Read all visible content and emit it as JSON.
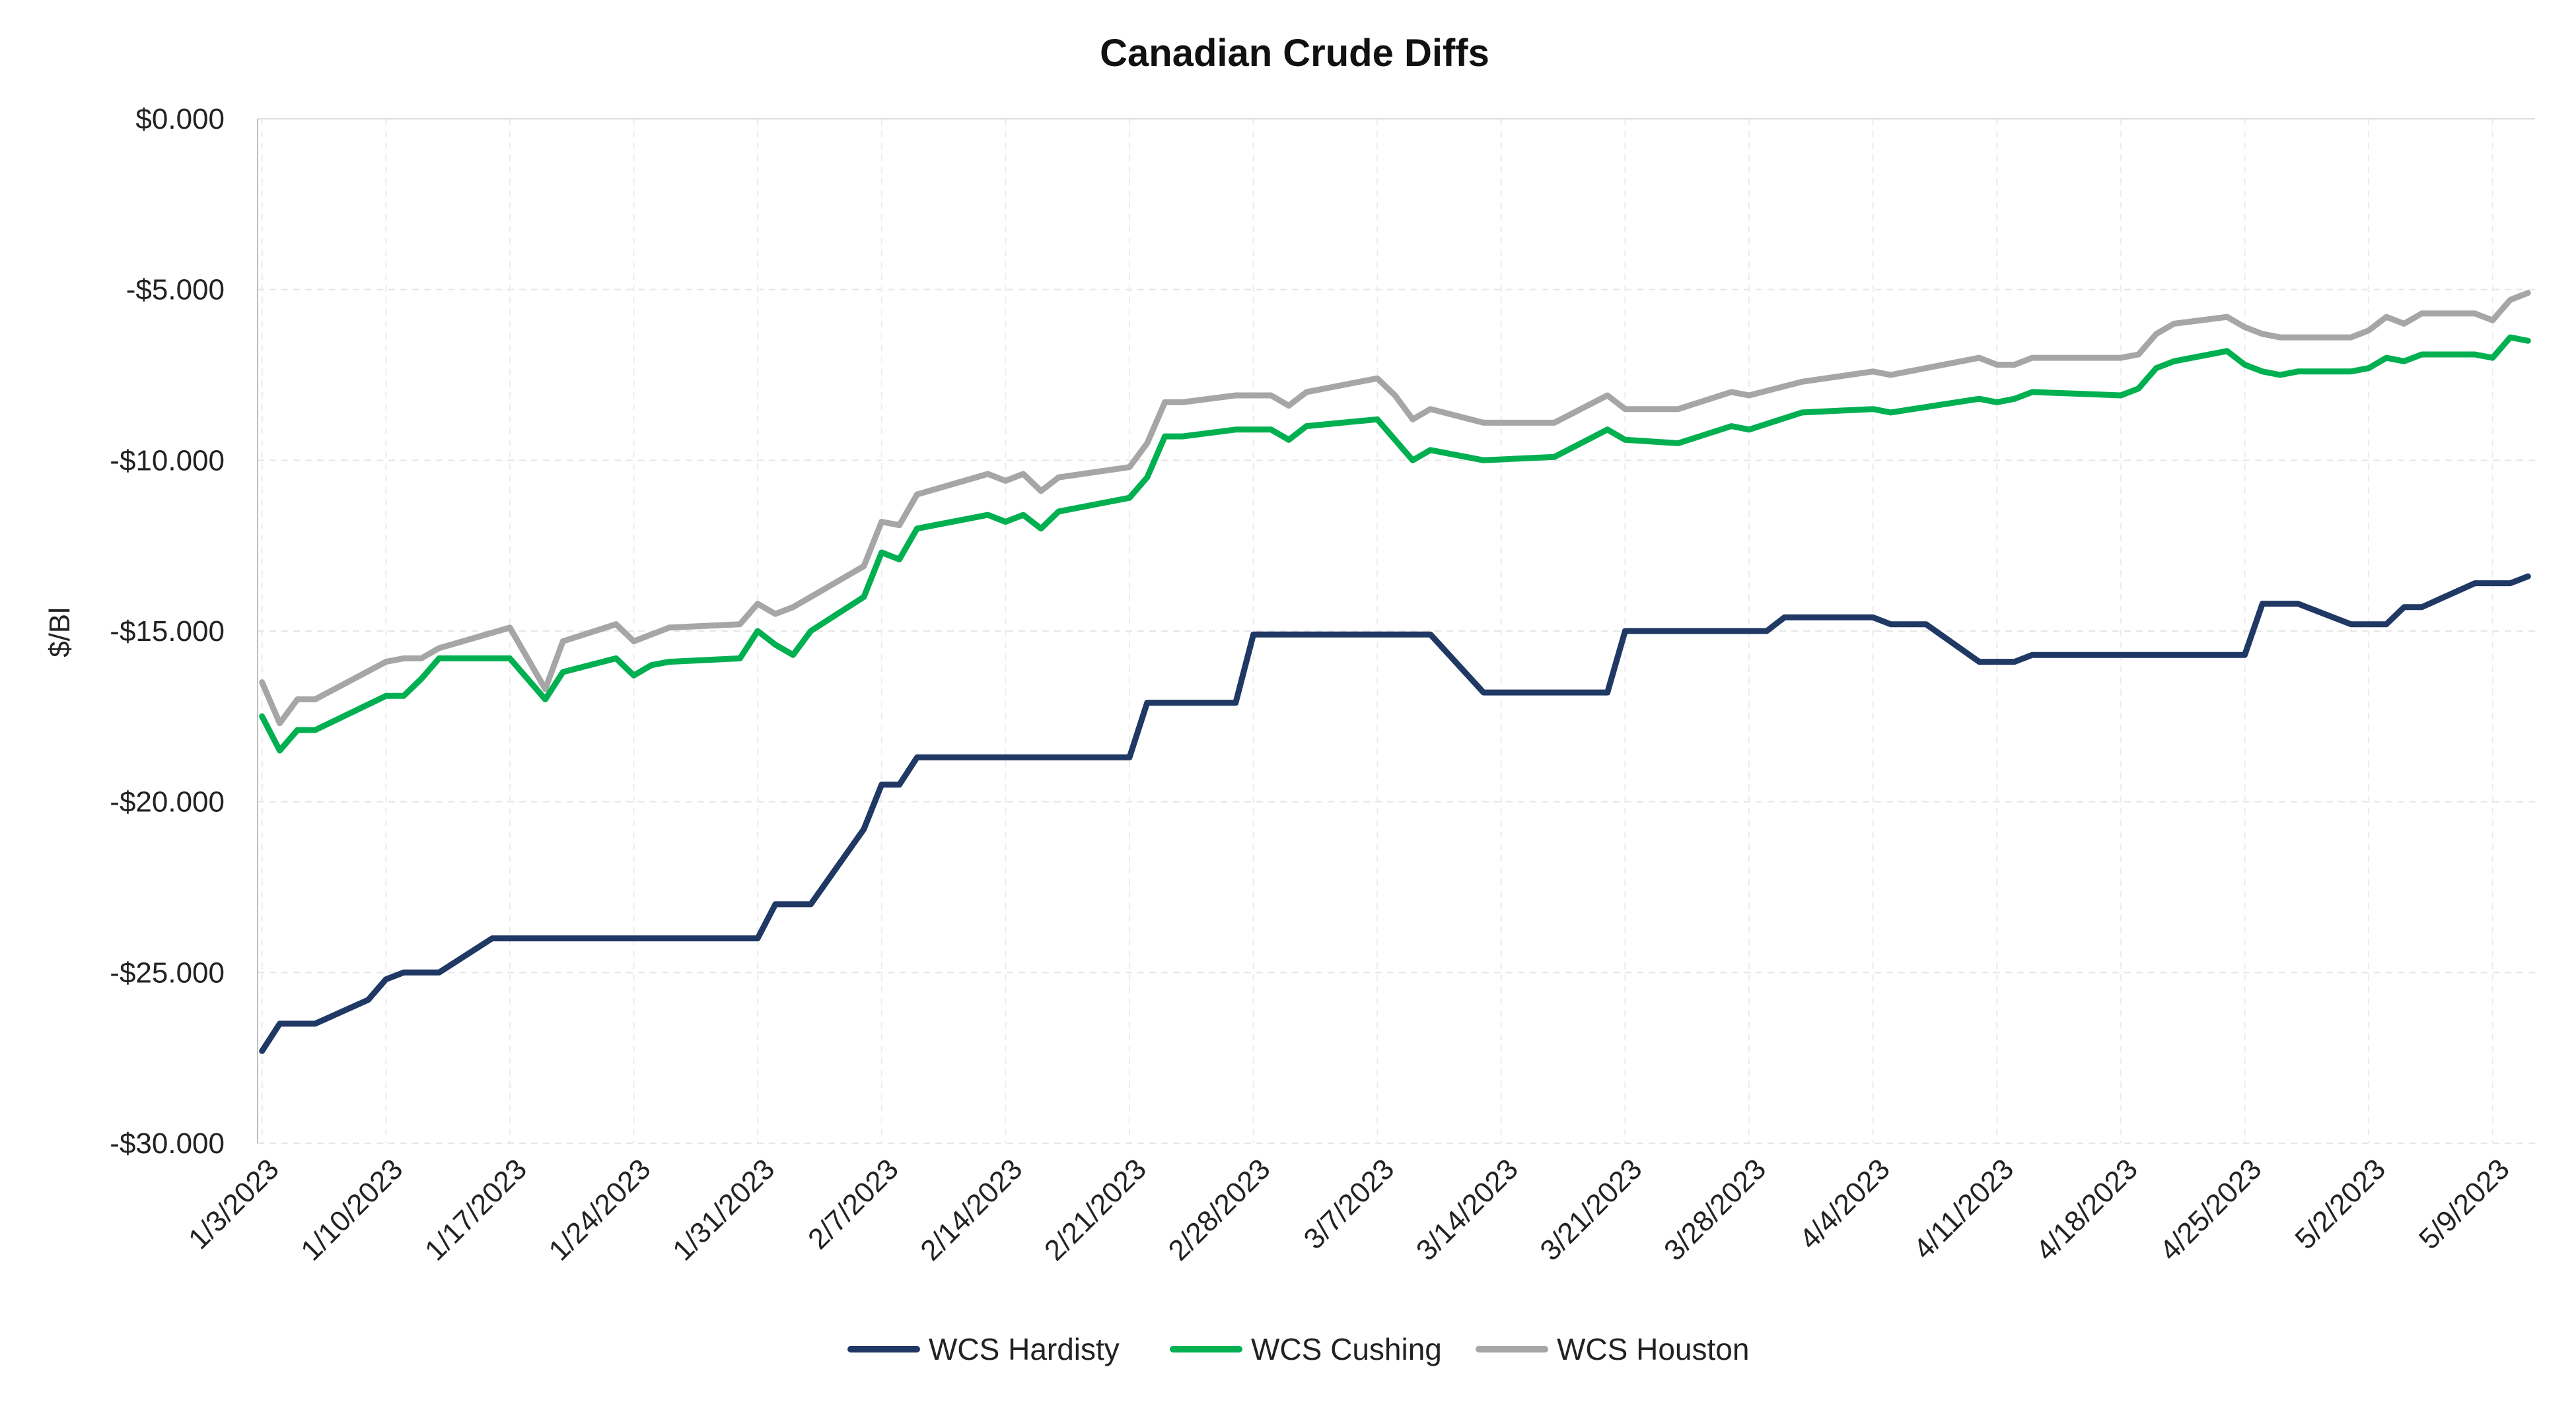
{
  "chart_data": {
    "type": "line",
    "title": "Canadian Crude Diffs",
    "xlabel": "",
    "ylabel": "$/Bl",
    "ylim": [
      -30,
      0
    ],
    "yticks": [
      "$0.000",
      "-$5.000",
      "-$10.000",
      "-$15.000",
      "-$20.000",
      "-$25.000",
      "-$30.000"
    ],
    "ytick_values": [
      0,
      -5,
      -10,
      -15,
      -20,
      -25,
      -30
    ],
    "xticks": [
      "1/3/2023",
      "1/10/2023",
      "1/17/2023",
      "1/24/2023",
      "1/31/2023",
      "2/7/2023",
      "2/14/2023",
      "2/21/2023",
      "2/28/2023",
      "3/7/2023",
      "3/14/2023",
      "3/21/2023",
      "3/28/2023",
      "4/4/2023",
      "4/11/2023",
      "4/18/2023",
      "4/25/2023",
      "5/2/2023",
      "5/9/2023"
    ],
    "x_axis_end": "5/11/2023",
    "grid": true,
    "legend_position": "bottom",
    "series": [
      {
        "name": "WCS Hardisty",
        "color": "#1f3864",
        "points": [
          [
            "1/3/2023",
            -27.3
          ],
          [
            "1/4/2023",
            -26.5
          ],
          [
            "1/5/2023",
            -26.5
          ],
          [
            "1/6/2023",
            -26.5
          ],
          [
            "1/9/2023",
            -25.8
          ],
          [
            "1/10/2023",
            -25.2
          ],
          [
            "1/11/2023",
            -25.0
          ],
          [
            "1/12/2023",
            -25.0
          ],
          [
            "1/13/2023",
            -25.0
          ],
          [
            "1/16/2023",
            -24.0
          ],
          [
            "1/17/2023",
            -24.0
          ],
          [
            "1/24/2023",
            -24.0
          ],
          [
            "1/31/2023",
            -24.0
          ],
          [
            "2/1/2023",
            -23.0
          ],
          [
            "2/2/2023",
            -23.0
          ],
          [
            "2/3/2023",
            -23.0
          ],
          [
            "2/6/2023",
            -20.8
          ],
          [
            "2/7/2023",
            -19.5
          ],
          [
            "2/8/2023",
            -19.5
          ],
          [
            "2/9/2023",
            -18.7
          ],
          [
            "2/10/2023",
            -18.7
          ],
          [
            "2/17/2023",
            -18.7
          ],
          [
            "2/21/2023",
            -18.7
          ],
          [
            "2/22/2023",
            -17.1
          ],
          [
            "2/27/2023",
            -17.1
          ],
          [
            "2/28/2023",
            -15.1
          ],
          [
            "3/10/2023",
            -15.1
          ],
          [
            "3/13/2023",
            -16.8
          ],
          [
            "3/20/2023",
            -16.8
          ],
          [
            "3/21/2023",
            -15.0
          ],
          [
            "3/28/2023",
            -15.0
          ],
          [
            "3/29/2023",
            -15.0
          ],
          [
            "3/30/2023",
            -14.6
          ],
          [
            "4/4/2023",
            -14.6
          ],
          [
            "4/5/2023",
            -14.8
          ],
          [
            "4/7/2023",
            -14.8
          ],
          [
            "4/10/2023",
            -15.9
          ],
          [
            "4/12/2023",
            -15.9
          ],
          [
            "4/13/2023",
            -15.7
          ],
          [
            "4/25/2023",
            -15.7
          ],
          [
            "4/26/2023",
            -14.2
          ],
          [
            "4/28/2023",
            -14.2
          ],
          [
            "5/1/2023",
            -14.8
          ],
          [
            "5/3/2023",
            -14.8
          ],
          [
            "5/4/2023",
            -14.3
          ],
          [
            "5/5/2023",
            -14.3
          ],
          [
            "5/8/2023",
            -13.6
          ],
          [
            "5/10/2023",
            -13.6
          ],
          [
            "5/11/2023",
            -13.4
          ]
        ]
      },
      {
        "name": "WCS Cushing",
        "color": "#00b050",
        "points": [
          [
            "1/3/2023",
            -17.5
          ],
          [
            "1/4/2023",
            -18.5
          ],
          [
            "1/5/2023",
            -17.9
          ],
          [
            "1/6/2023",
            -17.9
          ],
          [
            "1/10/2023",
            -16.9
          ],
          [
            "1/11/2023",
            -16.9
          ],
          [
            "1/12/2023",
            -16.4
          ],
          [
            "1/13/2023",
            -15.8
          ],
          [
            "1/17/2023",
            -15.8
          ],
          [
            "1/19/2023",
            -17.0
          ],
          [
            "1/20/2023",
            -16.2
          ],
          [
            "1/23/2023",
            -15.8
          ],
          [
            "1/24/2023",
            -16.3
          ],
          [
            "1/25/2023",
            -16.0
          ],
          [
            "1/26/2023",
            -15.9
          ],
          [
            "1/30/2023",
            -15.8
          ],
          [
            "1/31/2023",
            -15.0
          ],
          [
            "2/1/2023",
            -15.4
          ],
          [
            "2/2/2023",
            -15.7
          ],
          [
            "2/3/2023",
            -15.0
          ],
          [
            "2/6/2023",
            -14.0
          ],
          [
            "2/7/2023",
            -12.7
          ],
          [
            "2/8/2023",
            -12.9
          ],
          [
            "2/9/2023",
            -12.0
          ],
          [
            "2/13/2023",
            -11.6
          ],
          [
            "2/14/2023",
            -11.8
          ],
          [
            "2/15/2023",
            -11.6
          ],
          [
            "2/16/2023",
            -12.0
          ],
          [
            "2/17/2023",
            -11.5
          ],
          [
            "2/21/2023",
            -11.1
          ],
          [
            "2/22/2023",
            -10.5
          ],
          [
            "2/23/2023",
            -9.3
          ],
          [
            "2/24/2023",
            -9.3
          ],
          [
            "2/27/2023",
            -9.1
          ],
          [
            "2/28/2023",
            -9.1
          ],
          [
            "3/1/2023",
            -9.1
          ],
          [
            "3/2/2023",
            -9.4
          ],
          [
            "3/3/2023",
            -9.0
          ],
          [
            "3/7/2023",
            -8.8
          ],
          [
            "3/8/2023",
            -9.4
          ],
          [
            "3/9/2023",
            -10.0
          ],
          [
            "3/10/2023",
            -9.7
          ],
          [
            "3/13/2023",
            -10.0
          ],
          [
            "3/17/2023",
            -9.9
          ],
          [
            "3/20/2023",
            -9.1
          ],
          [
            "3/21/2023",
            -9.4
          ],
          [
            "3/24/2023",
            -9.5
          ],
          [
            "3/27/2023",
            -9.0
          ],
          [
            "3/28/2023",
            -9.1
          ],
          [
            "3/31/2023",
            -8.6
          ],
          [
            "4/4/2023",
            -8.5
          ],
          [
            "4/5/2023",
            -8.6
          ],
          [
            "4/10/2023",
            -8.2
          ],
          [
            "4/11/2023",
            -8.3
          ],
          [
            "4/12/2023",
            -8.2
          ],
          [
            "4/13/2023",
            -8.0
          ],
          [
            "4/18/2023",
            -8.1
          ],
          [
            "4/19/2023",
            -7.9
          ],
          [
            "4/20/2023",
            -7.3
          ],
          [
            "4/21/2023",
            -7.1
          ],
          [
            "4/24/2023",
            -6.8
          ],
          [
            "4/25/2023",
            -7.2
          ],
          [
            "4/26/2023",
            -7.4
          ],
          [
            "4/27/2023",
            -7.5
          ],
          [
            "4/28/2023",
            -7.4
          ],
          [
            "5/1/2023",
            -7.4
          ],
          [
            "5/2/2023",
            -7.3
          ],
          [
            "5/3/2023",
            -7.0
          ],
          [
            "5/4/2023",
            -7.1
          ],
          [
            "5/5/2023",
            -6.9
          ],
          [
            "5/8/2023",
            -6.9
          ],
          [
            "5/9/2023",
            -7.0
          ],
          [
            "5/10/2023",
            -6.4
          ],
          [
            "5/11/2023",
            -6.5
          ]
        ]
      },
      {
        "name": "WCS Houston",
        "color": "#a6a6a6",
        "points": [
          [
            "1/3/2023",
            -16.5
          ],
          [
            "1/4/2023",
            -17.7
          ],
          [
            "1/5/2023",
            -17.0
          ],
          [
            "1/6/2023",
            -17.0
          ],
          [
            "1/10/2023",
            -15.9
          ],
          [
            "1/11/2023",
            -15.8
          ],
          [
            "1/12/2023",
            -15.8
          ],
          [
            "1/13/2023",
            -15.5
          ],
          [
            "1/17/2023",
            -14.9
          ],
          [
            "1/19/2023",
            -16.7
          ],
          [
            "1/20/2023",
            -15.3
          ],
          [
            "1/23/2023",
            -14.8
          ],
          [
            "1/24/2023",
            -15.3
          ],
          [
            "1/25/2023",
            -15.1
          ],
          [
            "1/26/2023",
            -14.9
          ],
          [
            "1/30/2023",
            -14.8
          ],
          [
            "1/31/2023",
            -14.2
          ],
          [
            "2/1/2023",
            -14.5
          ],
          [
            "2/2/2023",
            -14.3
          ],
          [
            "2/3/2023",
            -14.0
          ],
          [
            "2/6/2023",
            -13.1
          ],
          [
            "2/7/2023",
            -11.8
          ],
          [
            "2/8/2023",
            -11.9
          ],
          [
            "2/9/2023",
            -11.0
          ],
          [
            "2/13/2023",
            -10.4
          ],
          [
            "2/14/2023",
            -10.6
          ],
          [
            "2/15/2023",
            -10.4
          ],
          [
            "2/16/2023",
            -10.9
          ],
          [
            "2/17/2023",
            -10.5
          ],
          [
            "2/21/2023",
            -10.2
          ],
          [
            "2/22/2023",
            -9.5
          ],
          [
            "2/23/2023",
            -8.3
          ],
          [
            "2/24/2023",
            -8.3
          ],
          [
            "2/27/2023",
            -8.1
          ],
          [
            "2/28/2023",
            -8.1
          ],
          [
            "3/1/2023",
            -8.1
          ],
          [
            "3/2/2023",
            -8.4
          ],
          [
            "3/3/2023",
            -8.0
          ],
          [
            "3/7/2023",
            -7.6
          ],
          [
            "3/8/2023",
            -8.1
          ],
          [
            "3/9/2023",
            -8.8
          ],
          [
            "3/10/2023",
            -8.5
          ],
          [
            "3/13/2023",
            -8.9
          ],
          [
            "3/17/2023",
            -8.9
          ],
          [
            "3/20/2023",
            -8.1
          ],
          [
            "3/21/2023",
            -8.5
          ],
          [
            "3/24/2023",
            -8.5
          ],
          [
            "3/27/2023",
            -8.0
          ],
          [
            "3/28/2023",
            -8.1
          ],
          [
            "3/31/2023",
            -7.7
          ],
          [
            "4/4/2023",
            -7.4
          ],
          [
            "4/5/2023",
            -7.5
          ],
          [
            "4/10/2023",
            -7.0
          ],
          [
            "4/11/2023",
            -7.2
          ],
          [
            "4/12/2023",
            -7.2
          ],
          [
            "4/13/2023",
            -7.0
          ],
          [
            "4/18/2023",
            -7.0
          ],
          [
            "4/19/2023",
            -6.9
          ],
          [
            "4/20/2023",
            -6.3
          ],
          [
            "4/21/2023",
            -6.0
          ],
          [
            "4/24/2023",
            -5.8
          ],
          [
            "4/25/2023",
            -6.1
          ],
          [
            "4/26/2023",
            -6.3
          ],
          [
            "4/27/2023",
            -6.4
          ],
          [
            "4/28/2023",
            -6.4
          ],
          [
            "5/1/2023",
            -6.4
          ],
          [
            "5/2/2023",
            -6.2
          ],
          [
            "5/3/2023",
            -5.8
          ],
          [
            "5/4/2023",
            -6.0
          ],
          [
            "5/5/2023",
            -5.7
          ],
          [
            "5/8/2023",
            -5.7
          ],
          [
            "5/9/2023",
            -5.9
          ],
          [
            "5/10/2023",
            -5.3
          ],
          [
            "5/11/2023",
            -5.1
          ]
        ]
      }
    ]
  }
}
